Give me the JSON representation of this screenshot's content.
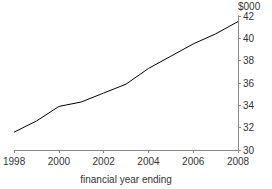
{
  "chart_data": {
    "type": "line",
    "xlabel": "financial year ending",
    "ylabel": "$000",
    "x": [
      1998,
      1999,
      2000,
      2001,
      2002,
      2003,
      2004,
      2005,
      2006,
      2007,
      2008
    ],
    "values": [
      31.6,
      32.6,
      33.9,
      34.3,
      35.1,
      35.9,
      37.3,
      38.4,
      39.5,
      40.4,
      41.5
    ],
    "color": "#000000",
    "xlim": [
      1998,
      2008
    ],
    "xticks": [
      1998,
      2000,
      2002,
      2004,
      2006,
      2008
    ],
    "ylim": [
      30,
      42
    ],
    "yticks": [
      30,
      32,
      34,
      36,
      38,
      40,
      42
    ],
    "grid": false
  }
}
